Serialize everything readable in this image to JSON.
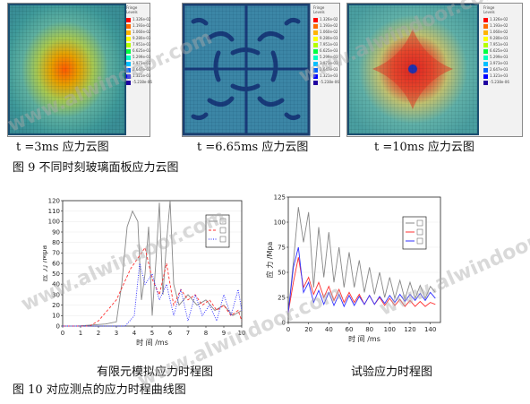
{
  "panels": [
    {
      "caption": "t =3ms  应力云图",
      "legend_title": "Fringe Levels",
      "legend_values": [
        "1.326e-02",
        "1.193e-02",
        "1.060e-02",
        "9.280e-03",
        "7.951e-03",
        "6.625e-03",
        "5.299e-03",
        "3.973e-03",
        "2.647e-03",
        "1.321e-03",
        "-5.238e-06"
      ]
    },
    {
      "caption": "t =6.65ms  应力云图",
      "legend_title": "Fringe Levels",
      "legend_values": [
        "1.326e-02",
        "1.193e-02",
        "1.060e-02",
        "9.280e-03",
        "7.951e-03",
        "6.625e-03",
        "5.299e-03",
        "3.973e-03",
        "2.647e-03",
        "1.321e-03",
        "-5.238e-06"
      ]
    },
    {
      "caption": "t =10ms  应力云图",
      "legend_title": "Fringe Levels",
      "legend_values": [
        "1.326e-02",
        "1.193e-02",
        "1.060e-02",
        "9.280e-03",
        "7.951e-03",
        "6.625e-03",
        "5.299e-03",
        "3.973e-03",
        "2.647e-03",
        "1.321e-03",
        "-5.238e-06"
      ]
    }
  ],
  "legend_colors": [
    "#ff0000",
    "#ff6a00",
    "#ffb400",
    "#ffff00",
    "#b4ff00",
    "#00ff40",
    "#00ffc0",
    "#00c0ff",
    "#0060ff",
    "#0000ff",
    "#2000a0"
  ],
  "figure9_caption": "图  9 不同时刻玻璃面板应力云图",
  "figure10_caption": "图 10 对应测点的应力时程曲线图",
  "chart_left_caption": "有限元模拟应力时程图",
  "chart_right_caption": "试验应力时程图",
  "watermark": "www.alwindoor.com",
  "chart_data": [
    {
      "type": "line",
      "ylabel": "应 力 /Mpa",
      "xlabel": "时 间 /ms",
      "xlim": [
        0,
        10
      ],
      "ylim": [
        0,
        120
      ],
      "xticks": [
        "0",
        "1",
        "2",
        "3",
        "4",
        "5",
        "6",
        "7",
        "8",
        "9",
        "10"
      ],
      "yticks": [
        "0",
        "10",
        "20",
        "30",
        "40",
        "50",
        "60",
        "70",
        "80",
        "90",
        "100",
        "110",
        "120"
      ],
      "legend_entries": [
        "",
        "",
        ""
      ],
      "series": [
        {
          "color": "#888888",
          "style": "solid",
          "x": [
            0,
            0.8,
            1.6,
            2.4,
            3.0,
            3.3,
            3.6,
            3.9,
            4.2,
            4.4,
            4.6,
            4.8,
            5.0,
            5.2,
            5.4,
            5.6,
            5.8,
            6.0,
            6.2,
            6.5,
            7.0,
            7.5,
            8.0,
            8.5,
            9.0,
            9.5,
            10
          ],
          "y": [
            0,
            0,
            1,
            2,
            4,
            40,
            95,
            110,
            100,
            25,
            50,
            95,
            10,
            60,
            118,
            30,
            80,
            120,
            40,
            20,
            30,
            20,
            25,
            15,
            20,
            10,
            15
          ]
        },
        {
          "color": "#ff3030",
          "style": "dashed",
          "x": [
            0,
            1.5,
            2.0,
            2.5,
            3.0,
            3.4,
            3.8,
            4.2,
            4.6,
            5.0,
            5.4,
            5.8,
            6.2,
            6.6,
            7.0,
            7.4,
            7.8,
            8.2,
            8.6,
            9.0,
            9.4,
            9.8,
            10
          ],
          "y": [
            0,
            0,
            5,
            15,
            25,
            40,
            55,
            65,
            75,
            45,
            30,
            60,
            20,
            35,
            25,
            30,
            20,
            25,
            15,
            20,
            10,
            15,
            5
          ]
        },
        {
          "color": "#2020ff",
          "style": "dotted",
          "x": [
            0,
            3.5,
            4.0,
            4.3,
            4.6,
            5.0,
            5.4,
            5.8,
            6.2,
            6.6,
            7.0,
            7.4,
            7.8,
            8.2,
            8.6,
            9.0,
            9.4,
            9.8,
            10
          ],
          "y": [
            0,
            0,
            10,
            60,
            40,
            50,
            25,
            40,
            10,
            35,
            5,
            30,
            10,
            20,
            5,
            30,
            10,
            35,
            15
          ]
        }
      ]
    },
    {
      "type": "line",
      "ylabel": "应 力 /Mpa",
      "xlabel": "时 间 /ms",
      "xlim": [
        0,
        150
      ],
      "ylim": [
        0,
        125
      ],
      "xticks": [
        "0",
        "20",
        "40",
        "60",
        "80",
        "100",
        "120",
        "140"
      ],
      "yticks": [
        "0",
        "25",
        "50",
        "75",
        "100",
        "125"
      ],
      "legend_entries": [
        "",
        "",
        ""
      ],
      "series": [
        {
          "color": "#888888",
          "style": "solid",
          "x": [
            0,
            5,
            10,
            15,
            20,
            25,
            30,
            35,
            40,
            45,
            50,
            55,
            60,
            65,
            70,
            75,
            80,
            85,
            90,
            95,
            100,
            105,
            110,
            115,
            120,
            125,
            130,
            135,
            140,
            145
          ],
          "y": [
            10,
            60,
            115,
            80,
            110,
            35,
            95,
            45,
            90,
            40,
            75,
            35,
            70,
            35,
            62,
            30,
            55,
            28,
            50,
            25,
            45,
            24,
            42,
            23,
            40,
            24,
            37,
            24,
            36,
            30
          ]
        },
        {
          "color": "#ff3030",
          "style": "solid",
          "x": [
            0,
            5,
            10,
            15,
            20,
            25,
            30,
            35,
            40,
            45,
            50,
            55,
            60,
            65,
            70,
            75,
            80,
            85,
            90,
            95,
            100,
            105,
            110,
            115,
            120,
            125,
            130,
            135,
            140,
            145
          ],
          "y": [
            10,
            40,
            65,
            35,
            45,
            28,
            40,
            25,
            36,
            22,
            33,
            20,
            30,
            20,
            28,
            18,
            27,
            18,
            25,
            17,
            24,
            17,
            23,
            16,
            22,
            16,
            21,
            16,
            20,
            18
          ]
        },
        {
          "color": "#3030ff",
          "style": "solid",
          "x": [
            0,
            5,
            10,
            15,
            20,
            25,
            30,
            35,
            40,
            45,
            50,
            55,
            60,
            65,
            70,
            75,
            80,
            85,
            90,
            95,
            100,
            105,
            110,
            115,
            120,
            125,
            130,
            135,
            140,
            145
          ],
          "y": [
            10,
            55,
            75,
            30,
            40,
            20,
            32,
            18,
            30,
            17,
            28,
            16,
            27,
            17,
            26,
            18,
            27,
            18,
            26,
            19,
            27,
            20,
            28,
            21,
            28,
            22,
            29,
            22,
            30,
            24
          ]
        }
      ]
    }
  ]
}
